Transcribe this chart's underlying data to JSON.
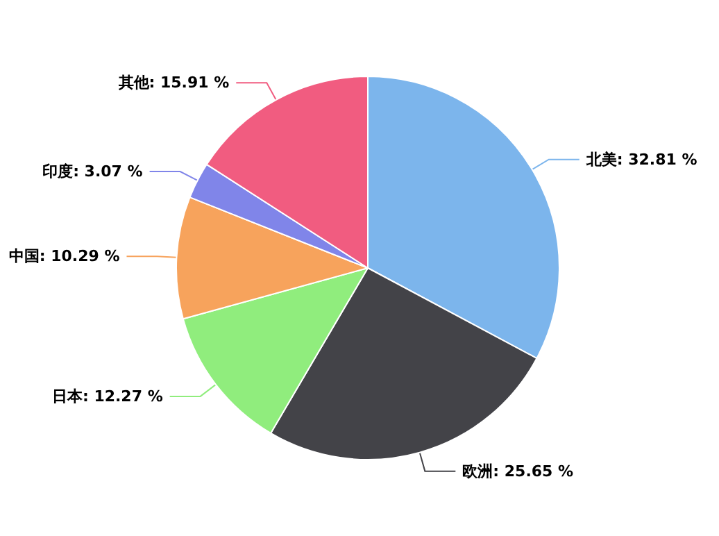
{
  "chart_data": {
    "type": "pie",
    "categories": [
      "北美",
      "欧洲",
      "日本",
      "中国",
      "印度",
      "其他"
    ],
    "values": [
      32.81,
      25.65,
      12.27,
      10.29,
      3.07,
      15.91
    ],
    "value_labels": [
      "32.81 %",
      "25.65 %",
      "12.27 %",
      "10.29 %",
      "3.07 %",
      "15.91 %"
    ],
    "colors": [
      "#7cb5ec",
      "#434348",
      "#90ed7d",
      "#f7a35c",
      "#8085e9",
      "#f15c80"
    ]
  }
}
